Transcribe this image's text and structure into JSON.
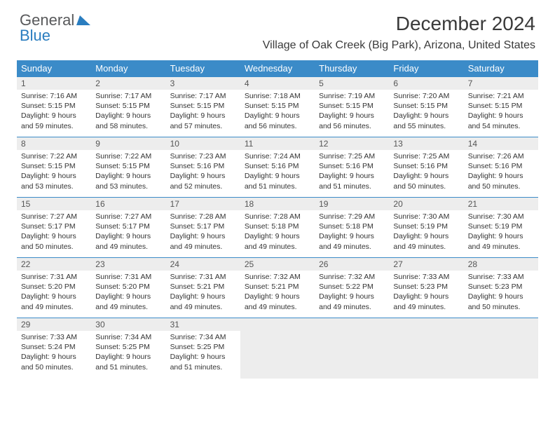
{
  "logo": {
    "text_gray": "General",
    "text_blue": "Blue"
  },
  "title": "December 2024",
  "location": "Village of Oak Creek (Big Park), Arizona, United States",
  "colors": {
    "header_bg": "#3b8bc8",
    "header_text": "#ffffff",
    "daynum_bg": "#ededed",
    "border": "#3b8bc8",
    "logo_gray": "#58595b",
    "logo_blue": "#2a7dbf"
  },
  "weekdays": [
    "Sunday",
    "Monday",
    "Tuesday",
    "Wednesday",
    "Thursday",
    "Friday",
    "Saturday"
  ],
  "weeks": [
    [
      {
        "n": "1",
        "sr": "Sunrise: 7:16 AM",
        "ss": "Sunset: 5:15 PM",
        "d1": "Daylight: 9 hours",
        "d2": "and 59 minutes."
      },
      {
        "n": "2",
        "sr": "Sunrise: 7:17 AM",
        "ss": "Sunset: 5:15 PM",
        "d1": "Daylight: 9 hours",
        "d2": "and 58 minutes."
      },
      {
        "n": "3",
        "sr": "Sunrise: 7:17 AM",
        "ss": "Sunset: 5:15 PM",
        "d1": "Daylight: 9 hours",
        "d2": "and 57 minutes."
      },
      {
        "n": "4",
        "sr": "Sunrise: 7:18 AM",
        "ss": "Sunset: 5:15 PM",
        "d1": "Daylight: 9 hours",
        "d2": "and 56 minutes."
      },
      {
        "n": "5",
        "sr": "Sunrise: 7:19 AM",
        "ss": "Sunset: 5:15 PM",
        "d1": "Daylight: 9 hours",
        "d2": "and 56 minutes."
      },
      {
        "n": "6",
        "sr": "Sunrise: 7:20 AM",
        "ss": "Sunset: 5:15 PM",
        "d1": "Daylight: 9 hours",
        "d2": "and 55 minutes."
      },
      {
        "n": "7",
        "sr": "Sunrise: 7:21 AM",
        "ss": "Sunset: 5:15 PM",
        "d1": "Daylight: 9 hours",
        "d2": "and 54 minutes."
      }
    ],
    [
      {
        "n": "8",
        "sr": "Sunrise: 7:22 AM",
        "ss": "Sunset: 5:15 PM",
        "d1": "Daylight: 9 hours",
        "d2": "and 53 minutes."
      },
      {
        "n": "9",
        "sr": "Sunrise: 7:22 AM",
        "ss": "Sunset: 5:15 PM",
        "d1": "Daylight: 9 hours",
        "d2": "and 53 minutes."
      },
      {
        "n": "10",
        "sr": "Sunrise: 7:23 AM",
        "ss": "Sunset: 5:16 PM",
        "d1": "Daylight: 9 hours",
        "d2": "and 52 minutes."
      },
      {
        "n": "11",
        "sr": "Sunrise: 7:24 AM",
        "ss": "Sunset: 5:16 PM",
        "d1": "Daylight: 9 hours",
        "d2": "and 51 minutes."
      },
      {
        "n": "12",
        "sr": "Sunrise: 7:25 AM",
        "ss": "Sunset: 5:16 PM",
        "d1": "Daylight: 9 hours",
        "d2": "and 51 minutes."
      },
      {
        "n": "13",
        "sr": "Sunrise: 7:25 AM",
        "ss": "Sunset: 5:16 PM",
        "d1": "Daylight: 9 hours",
        "d2": "and 50 minutes."
      },
      {
        "n": "14",
        "sr": "Sunrise: 7:26 AM",
        "ss": "Sunset: 5:16 PM",
        "d1": "Daylight: 9 hours",
        "d2": "and 50 minutes."
      }
    ],
    [
      {
        "n": "15",
        "sr": "Sunrise: 7:27 AM",
        "ss": "Sunset: 5:17 PM",
        "d1": "Daylight: 9 hours",
        "d2": "and 50 minutes."
      },
      {
        "n": "16",
        "sr": "Sunrise: 7:27 AM",
        "ss": "Sunset: 5:17 PM",
        "d1": "Daylight: 9 hours",
        "d2": "and 49 minutes."
      },
      {
        "n": "17",
        "sr": "Sunrise: 7:28 AM",
        "ss": "Sunset: 5:17 PM",
        "d1": "Daylight: 9 hours",
        "d2": "and 49 minutes."
      },
      {
        "n": "18",
        "sr": "Sunrise: 7:28 AM",
        "ss": "Sunset: 5:18 PM",
        "d1": "Daylight: 9 hours",
        "d2": "and 49 minutes."
      },
      {
        "n": "19",
        "sr": "Sunrise: 7:29 AM",
        "ss": "Sunset: 5:18 PM",
        "d1": "Daylight: 9 hours",
        "d2": "and 49 minutes."
      },
      {
        "n": "20",
        "sr": "Sunrise: 7:30 AM",
        "ss": "Sunset: 5:19 PM",
        "d1": "Daylight: 9 hours",
        "d2": "and 49 minutes."
      },
      {
        "n": "21",
        "sr": "Sunrise: 7:30 AM",
        "ss": "Sunset: 5:19 PM",
        "d1": "Daylight: 9 hours",
        "d2": "and 49 minutes."
      }
    ],
    [
      {
        "n": "22",
        "sr": "Sunrise: 7:31 AM",
        "ss": "Sunset: 5:20 PM",
        "d1": "Daylight: 9 hours",
        "d2": "and 49 minutes."
      },
      {
        "n": "23",
        "sr": "Sunrise: 7:31 AM",
        "ss": "Sunset: 5:20 PM",
        "d1": "Daylight: 9 hours",
        "d2": "and 49 minutes."
      },
      {
        "n": "24",
        "sr": "Sunrise: 7:31 AM",
        "ss": "Sunset: 5:21 PM",
        "d1": "Daylight: 9 hours",
        "d2": "and 49 minutes."
      },
      {
        "n": "25",
        "sr": "Sunrise: 7:32 AM",
        "ss": "Sunset: 5:21 PM",
        "d1": "Daylight: 9 hours",
        "d2": "and 49 minutes."
      },
      {
        "n": "26",
        "sr": "Sunrise: 7:32 AM",
        "ss": "Sunset: 5:22 PM",
        "d1": "Daylight: 9 hours",
        "d2": "and 49 minutes."
      },
      {
        "n": "27",
        "sr": "Sunrise: 7:33 AM",
        "ss": "Sunset: 5:23 PM",
        "d1": "Daylight: 9 hours",
        "d2": "and 49 minutes."
      },
      {
        "n": "28",
        "sr": "Sunrise: 7:33 AM",
        "ss": "Sunset: 5:23 PM",
        "d1": "Daylight: 9 hours",
        "d2": "and 50 minutes."
      }
    ],
    [
      {
        "n": "29",
        "sr": "Sunrise: 7:33 AM",
        "ss": "Sunset: 5:24 PM",
        "d1": "Daylight: 9 hours",
        "d2": "and 50 minutes."
      },
      {
        "n": "30",
        "sr": "Sunrise: 7:34 AM",
        "ss": "Sunset: 5:25 PM",
        "d1": "Daylight: 9 hours",
        "d2": "and 51 minutes."
      },
      {
        "n": "31",
        "sr": "Sunrise: 7:34 AM",
        "ss": "Sunset: 5:25 PM",
        "d1": "Daylight: 9 hours",
        "d2": "and 51 minutes."
      },
      null,
      null,
      null,
      null
    ]
  ]
}
